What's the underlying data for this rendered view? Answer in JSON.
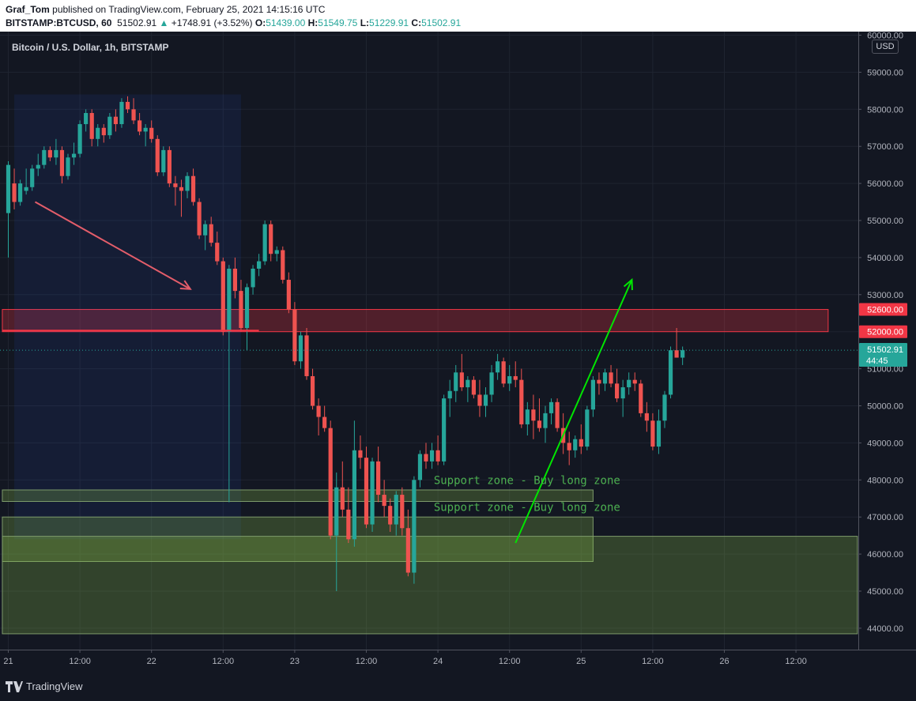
{
  "header": {
    "author": "Graf_Tom",
    "published_text": "published on TradingView.com, February 25, 2021 14:15:16 UTC",
    "symbol": "BITSTAMP:BTCUSD, 60",
    "last": "51502.91",
    "change": "+1748.91 (+3.52%)",
    "open_label": "O:",
    "open": "51439.00",
    "high_label": "H:",
    "high": "51549.75",
    "low_label": "L:",
    "low": "51229.91",
    "close_label": "C:",
    "close": "51502.91"
  },
  "footer": {
    "brand": "TradingView"
  },
  "colors": {
    "up": "#26a69a",
    "down": "#ef5350",
    "background": "#131722",
    "green_arrow": "#00e600",
    "red_arrow": "#e35d6a"
  },
  "chart_data": {
    "type": "candlestick",
    "title": "Bitcoin / U.S. Dollar, 1h, BITSTAMP",
    "currency": "USD",
    "y_ticks": [
      44000,
      45000,
      46000,
      47000,
      48000,
      49000,
      50000,
      51000,
      52000,
      53000,
      54000,
      55000,
      56000,
      57000,
      58000,
      59000,
      60000
    ],
    "y_tick_labels": [
      "44000.00",
      "45000.00",
      "46000.00",
      "47000.00",
      "48000.00",
      "49000.00",
      "50000.00",
      "51000.00",
      "52000.00",
      "53000.00",
      "54000.00",
      "55000.00",
      "56000.00",
      "57000.00",
      "58000.00",
      "59000.00",
      "60000.00"
    ],
    "ylim": [
      43500,
      60000
    ],
    "x_ticks": [
      {
        "label": "21",
        "bar": 0
      },
      {
        "label": "12:00",
        "bar": 12
      },
      {
        "label": "22",
        "bar": 24
      },
      {
        "label": "12:00",
        "bar": 36
      },
      {
        "label": "23",
        "bar": 48
      },
      {
        "label": "12:00",
        "bar": 60
      },
      {
        "label": "24",
        "bar": 72
      },
      {
        "label": "12:00",
        "bar": 84
      },
      {
        "label": "25",
        "bar": 96
      },
      {
        "label": "12:00",
        "bar": 108
      },
      {
        "label": "26",
        "bar": 120
      },
      {
        "label": "12:00",
        "bar": 132
      }
    ],
    "price_labels": [
      {
        "text": "52600.00",
        "value": 52600,
        "bg": "#f23645"
      },
      {
        "text": "52000.00",
        "value": 52000,
        "bg": "#f23645"
      },
      {
        "text": "51502.91",
        "value": 51502.91,
        "sub": "44:45",
        "bg": "#26a69a"
      }
    ],
    "zones": [
      {
        "kind": "resistance",
        "from_bar": -1,
        "to_bar": 137.4,
        "low": 52000,
        "high": 52600,
        "color": "#f23645"
      },
      {
        "kind": "downtrend_box",
        "from_bar": 1,
        "to_bar": 39,
        "low": 46400,
        "high": 58400,
        "color": "#2962ff"
      },
      {
        "kind": "support",
        "from_bar": -1,
        "to_bar": 98,
        "low": 47420,
        "high": 47730,
        "color": "#8bc34a"
      },
      {
        "kind": "support",
        "from_bar": -1,
        "to_bar": 98,
        "low": 45800,
        "high": 47000,
        "color": "#8bc34a"
      },
      {
        "kind": "support",
        "from_bar": -1,
        "to_bar": 142.3,
        "low": 43850,
        "high": 46480,
        "color": "#8bc34a"
      }
    ],
    "lines": [
      {
        "kind": "horizontal",
        "from_bar": -1,
        "to_bar": 42,
        "value": 52030,
        "color": "#f23645"
      },
      {
        "kind": "arrow",
        "from": [
          4.5,
          55500
        ],
        "to": [
          30.5,
          53150
        ],
        "color": "#e35d6a"
      },
      {
        "kind": "arrow",
        "from": [
          85,
          46300
        ],
        "to": [
          104.5,
          53400
        ],
        "color": "#00e600"
      }
    ],
    "annotations": [
      {
        "text": "Support zone - Buy long zone",
        "bar": 71.3,
        "value": 48000
      },
      {
        "text": "Support zone - Buy long zone",
        "bar": 71.3,
        "value": 47270
      }
    ],
    "candles": [
      {
        "o": 55200,
        "h": 56600,
        "l": 54000,
        "c": 56500
      },
      {
        "o": 56000,
        "h": 56400,
        "l": 55300,
        "c": 55500
      },
      {
        "o": 55500,
        "h": 56100,
        "l": 55400,
        "c": 56000
      },
      {
        "o": 55800,
        "h": 56400,
        "l": 55700,
        "c": 55900
      },
      {
        "o": 55900,
        "h": 56500,
        "l": 55800,
        "c": 56400
      },
      {
        "o": 56400,
        "h": 56800,
        "l": 56200,
        "c": 56500
      },
      {
        "o": 56500,
        "h": 57000,
        "l": 56400,
        "c": 56900
      },
      {
        "o": 56900,
        "h": 57000,
        "l": 56600,
        "c": 56700
      },
      {
        "o": 56700,
        "h": 57200,
        "l": 56500,
        "c": 56900
      },
      {
        "o": 56900,
        "h": 57000,
        "l": 56000,
        "c": 56200
      },
      {
        "o": 56200,
        "h": 56800,
        "l": 56100,
        "c": 56700
      },
      {
        "o": 56700,
        "h": 57100,
        "l": 56500,
        "c": 56800
      },
      {
        "o": 56800,
        "h": 57700,
        "l": 56700,
        "c": 57600
      },
      {
        "o": 57600,
        "h": 58000,
        "l": 57400,
        "c": 57900
      },
      {
        "o": 57900,
        "h": 58000,
        "l": 57000,
        "c": 57200
      },
      {
        "o": 57200,
        "h": 57600,
        "l": 57000,
        "c": 57500
      },
      {
        "o": 57500,
        "h": 57600,
        "l": 57100,
        "c": 57300
      },
      {
        "o": 57300,
        "h": 57900,
        "l": 57200,
        "c": 57800
      },
      {
        "o": 57800,
        "h": 58000,
        "l": 57400,
        "c": 57600
      },
      {
        "o": 57600,
        "h": 58300,
        "l": 57500,
        "c": 58200
      },
      {
        "o": 58200,
        "h": 58350,
        "l": 57900,
        "c": 58000
      },
      {
        "o": 58000,
        "h": 58300,
        "l": 57600,
        "c": 57700
      },
      {
        "o": 57700,
        "h": 57900,
        "l": 57300,
        "c": 57400
      },
      {
        "o": 57400,
        "h": 57600,
        "l": 57000,
        "c": 57500
      },
      {
        "o": 57500,
        "h": 57700,
        "l": 57100,
        "c": 57200
      },
      {
        "o": 57200,
        "h": 57300,
        "l": 56200,
        "c": 56300
      },
      {
        "o": 56300,
        "h": 57000,
        "l": 56200,
        "c": 56900
      },
      {
        "o": 56900,
        "h": 57000,
        "l": 55900,
        "c": 56000
      },
      {
        "o": 56000,
        "h": 56200,
        "l": 55400,
        "c": 55900
      },
      {
        "o": 55900,
        "h": 56100,
        "l": 55100,
        "c": 55800
      },
      {
        "o": 55800,
        "h": 56300,
        "l": 55600,
        "c": 56200
      },
      {
        "o": 56200,
        "h": 56400,
        "l": 55400,
        "c": 55500
      },
      {
        "o": 55500,
        "h": 55600,
        "l": 54500,
        "c": 54600
      },
      {
        "o": 54600,
        "h": 55000,
        "l": 54200,
        "c": 54900
      },
      {
        "o": 54900,
        "h": 55100,
        "l": 54300,
        "c": 54400
      },
      {
        "o": 54400,
        "h": 54700,
        "l": 53800,
        "c": 53900
      },
      {
        "o": 53900,
        "h": 54000,
        "l": 51900,
        "c": 52000
      },
      {
        "o": 52000,
        "h": 53800,
        "l": 47400,
        "c": 53700
      },
      {
        "o": 53700,
        "h": 54000,
        "l": 52900,
        "c": 53100
      },
      {
        "o": 53100,
        "h": 53400,
        "l": 52000,
        "c": 52100
      },
      {
        "o": 52100,
        "h": 53300,
        "l": 51500,
        "c": 53200
      },
      {
        "o": 53200,
        "h": 53800,
        "l": 53000,
        "c": 53700
      },
      {
        "o": 53700,
        "h": 54100,
        "l": 53500,
        "c": 53900
      },
      {
        "o": 53900,
        "h": 55000,
        "l": 53800,
        "c": 54900
      },
      {
        "o": 54900,
        "h": 55000,
        "l": 53900,
        "c": 54100
      },
      {
        "o": 54100,
        "h": 54300,
        "l": 53900,
        "c": 54200
      },
      {
        "o": 54200,
        "h": 54300,
        "l": 53300,
        "c": 53400
      },
      {
        "o": 53400,
        "h": 53600,
        "l": 52500,
        "c": 52600
      },
      {
        "o": 52600,
        "h": 52800,
        "l": 51100,
        "c": 51200
      },
      {
        "o": 51200,
        "h": 52000,
        "l": 51000,
        "c": 51900
      },
      {
        "o": 51900,
        "h": 52100,
        "l": 50700,
        "c": 50800
      },
      {
        "o": 50800,
        "h": 51000,
        "l": 49900,
        "c": 50000
      },
      {
        "o": 50000,
        "h": 50200,
        "l": 49200,
        "c": 49700
      },
      {
        "o": 49700,
        "h": 50000,
        "l": 49300,
        "c": 49400
      },
      {
        "o": 49400,
        "h": 49600,
        "l": 46400,
        "c": 46500
      },
      {
        "o": 46500,
        "h": 48200,
        "l": 45000,
        "c": 47800
      },
      {
        "o": 47800,
        "h": 48500,
        "l": 47000,
        "c": 47200
      },
      {
        "o": 47200,
        "h": 47800,
        "l": 46300,
        "c": 46400
      },
      {
        "o": 46400,
        "h": 49600,
        "l": 46200,
        "c": 48800
      },
      {
        "o": 48800,
        "h": 49200,
        "l": 48300,
        "c": 48600
      },
      {
        "o": 48600,
        "h": 48900,
        "l": 46700,
        "c": 46800
      },
      {
        "o": 46800,
        "h": 48600,
        "l": 46600,
        "c": 48500
      },
      {
        "o": 48500,
        "h": 48900,
        "l": 47400,
        "c": 47600
      },
      {
        "o": 47600,
        "h": 48000,
        "l": 47000,
        "c": 47300
      },
      {
        "o": 47300,
        "h": 47500,
        "l": 46600,
        "c": 46800
      },
      {
        "o": 46800,
        "h": 47700,
        "l": 46500,
        "c": 47600
      },
      {
        "o": 47600,
        "h": 47800,
        "l": 46500,
        "c": 46700
      },
      {
        "o": 46700,
        "h": 47200,
        "l": 45400,
        "c": 45500
      },
      {
        "o": 45500,
        "h": 48100,
        "l": 45200,
        "c": 48000
      },
      {
        "o": 48000,
        "h": 48800,
        "l": 47800,
        "c": 48700
      },
      {
        "o": 48700,
        "h": 49000,
        "l": 48300,
        "c": 48500
      },
      {
        "o": 48500,
        "h": 49000,
        "l": 48300,
        "c": 48800
      },
      {
        "o": 48800,
        "h": 49200,
        "l": 48400,
        "c": 48500
      },
      {
        "o": 48500,
        "h": 50300,
        "l": 48400,
        "c": 50200
      },
      {
        "o": 50200,
        "h": 50700,
        "l": 49700,
        "c": 50400
      },
      {
        "o": 50400,
        "h": 51100,
        "l": 50100,
        "c": 50900
      },
      {
        "o": 50900,
        "h": 51400,
        "l": 50400,
        "c": 50500
      },
      {
        "o": 50500,
        "h": 50800,
        "l": 50100,
        "c": 50700
      },
      {
        "o": 50700,
        "h": 50800,
        "l": 50200,
        "c": 50300
      },
      {
        "o": 50300,
        "h": 50700,
        "l": 49700,
        "c": 50000
      },
      {
        "o": 50000,
        "h": 50500,
        "l": 49700,
        "c": 50300
      },
      {
        "o": 50300,
        "h": 51100,
        "l": 50100,
        "c": 50900
      },
      {
        "o": 50900,
        "h": 51400,
        "l": 50700,
        "c": 51200
      },
      {
        "o": 51200,
        "h": 51300,
        "l": 50500,
        "c": 50600
      },
      {
        "o": 50600,
        "h": 51100,
        "l": 50400,
        "c": 50800
      },
      {
        "o": 50800,
        "h": 51200,
        "l": 50500,
        "c": 50700
      },
      {
        "o": 50700,
        "h": 51000,
        "l": 49400,
        "c": 49500
      },
      {
        "o": 49500,
        "h": 50100,
        "l": 49200,
        "c": 49900
      },
      {
        "o": 49900,
        "h": 50300,
        "l": 49100,
        "c": 49600
      },
      {
        "o": 49600,
        "h": 50200,
        "l": 49300,
        "c": 49400
      },
      {
        "o": 49400,
        "h": 50000,
        "l": 49000,
        "c": 49800
      },
      {
        "o": 49800,
        "h": 50200,
        "l": 49500,
        "c": 50100
      },
      {
        "o": 50100,
        "h": 50200,
        "l": 49300,
        "c": 49400
      },
      {
        "o": 49400,
        "h": 49800,
        "l": 48700,
        "c": 49000
      },
      {
        "o": 49000,
        "h": 49300,
        "l": 48400,
        "c": 48800
      },
      {
        "o": 48800,
        "h": 49200,
        "l": 48600,
        "c": 49100
      },
      {
        "o": 49100,
        "h": 49500,
        "l": 48700,
        "c": 48900
      },
      {
        "o": 48900,
        "h": 50000,
        "l": 48800,
        "c": 49900
      },
      {
        "o": 49900,
        "h": 50800,
        "l": 49700,
        "c": 50700
      },
      {
        "o": 50700,
        "h": 50900,
        "l": 50300,
        "c": 50600
      },
      {
        "o": 50600,
        "h": 51000,
        "l": 50400,
        "c": 50900
      },
      {
        "o": 50900,
        "h": 51100,
        "l": 50500,
        "c": 50600
      },
      {
        "o": 50600,
        "h": 51000,
        "l": 50100,
        "c": 50200
      },
      {
        "o": 50200,
        "h": 50700,
        "l": 49700,
        "c": 50500
      },
      {
        "o": 50500,
        "h": 50900,
        "l": 50300,
        "c": 50700
      },
      {
        "o": 50700,
        "h": 50900,
        "l": 50400,
        "c": 50600
      },
      {
        "o": 50600,
        "h": 50700,
        "l": 49700,
        "c": 49800
      },
      {
        "o": 49800,
        "h": 50100,
        "l": 49300,
        "c": 49600
      },
      {
        "o": 49600,
        "h": 49800,
        "l": 48800,
        "c": 48900
      },
      {
        "o": 48900,
        "h": 49900,
        "l": 48700,
        "c": 49600
      },
      {
        "o": 49600,
        "h": 50400,
        "l": 49400,
        "c": 50300
      },
      {
        "o": 50300,
        "h": 51600,
        "l": 50200,
        "c": 51500
      },
      {
        "o": 51500,
        "h": 52100,
        "l": 51300,
        "c": 51300
      },
      {
        "o": 51300,
        "h": 51600,
        "l": 51100,
        "c": 51500
      }
    ]
  }
}
